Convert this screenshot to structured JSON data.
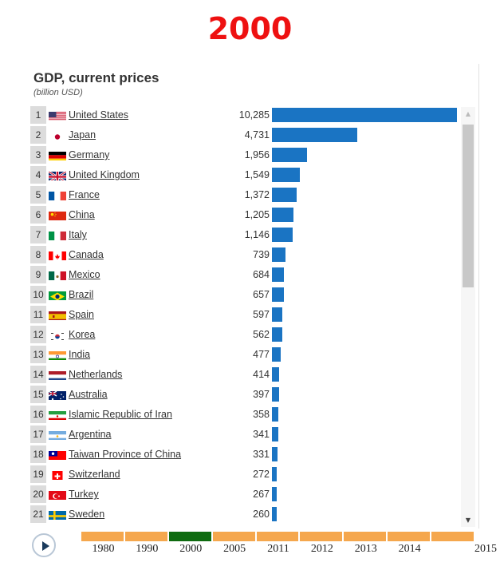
{
  "header": {
    "year": "2000"
  },
  "chart_data": {
    "type": "bar",
    "title": "GDP, current prices",
    "unit": "(billion USD)",
    "xlim": [
      0,
      10285
    ],
    "rows": [
      {
        "rank": "1",
        "country": "United States",
        "value": 10285,
        "label": "10,285",
        "flag": "us"
      },
      {
        "rank": "2",
        "country": "Japan",
        "value": 4731,
        "label": "4,731",
        "flag": "jp"
      },
      {
        "rank": "3",
        "country": "Germany",
        "value": 1956,
        "label": "1,956",
        "flag": "de"
      },
      {
        "rank": "4",
        "country": "United Kingdom",
        "value": 1549,
        "label": "1,549",
        "flag": "gb"
      },
      {
        "rank": "5",
        "country": "France",
        "value": 1372,
        "label": "1,372",
        "flag": "fr"
      },
      {
        "rank": "6",
        "country": "China",
        "value": 1205,
        "label": "1,205",
        "flag": "cn"
      },
      {
        "rank": "7",
        "country": "Italy",
        "value": 1146,
        "label": "1,146",
        "flag": "it"
      },
      {
        "rank": "8",
        "country": "Canada",
        "value": 739,
        "label": "739",
        "flag": "ca"
      },
      {
        "rank": "9",
        "country": "Mexico",
        "value": 684,
        "label": "684",
        "flag": "mx"
      },
      {
        "rank": "10",
        "country": "Brazil",
        "value": 657,
        "label": "657",
        "flag": "br"
      },
      {
        "rank": "11",
        "country": "Spain",
        "value": 597,
        "label": "597",
        "flag": "es"
      },
      {
        "rank": "12",
        "country": "Korea",
        "value": 562,
        "label": "562",
        "flag": "kr"
      },
      {
        "rank": "13",
        "country": "India",
        "value": 477,
        "label": "477",
        "flag": "in"
      },
      {
        "rank": "14",
        "country": "Netherlands",
        "value": 414,
        "label": "414",
        "flag": "nl"
      },
      {
        "rank": "15",
        "country": "Australia",
        "value": 397,
        "label": "397",
        "flag": "au"
      },
      {
        "rank": "16",
        "country": "Islamic Republic of Iran",
        "value": 358,
        "label": "358",
        "flag": "ir"
      },
      {
        "rank": "17",
        "country": "Argentina",
        "value": 341,
        "label": "341",
        "flag": "ar"
      },
      {
        "rank": "18",
        "country": "Taiwan Province of China",
        "value": 331,
        "label": "331",
        "flag": "tw"
      },
      {
        "rank": "19",
        "country": "Switzerland",
        "value": 272,
        "label": "272",
        "flag": "ch"
      },
      {
        "rank": "20",
        "country": "Turkey",
        "value": 267,
        "label": "267",
        "flag": "tr"
      },
      {
        "rank": "21",
        "country": "Sweden",
        "value": 260,
        "label": "260",
        "flag": "se"
      }
    ],
    "bar_color": "#1a74c3"
  },
  "timeline": {
    "labels": [
      "1980",
      "1990",
      "2000",
      "2005",
      "2011",
      "2012",
      "2013",
      "2014",
      "2015"
    ],
    "active": "2000",
    "colors": {
      "segment": "#f5a74d",
      "active": "#0f6b10"
    }
  },
  "controls": {
    "play_icon": "play-icon"
  }
}
